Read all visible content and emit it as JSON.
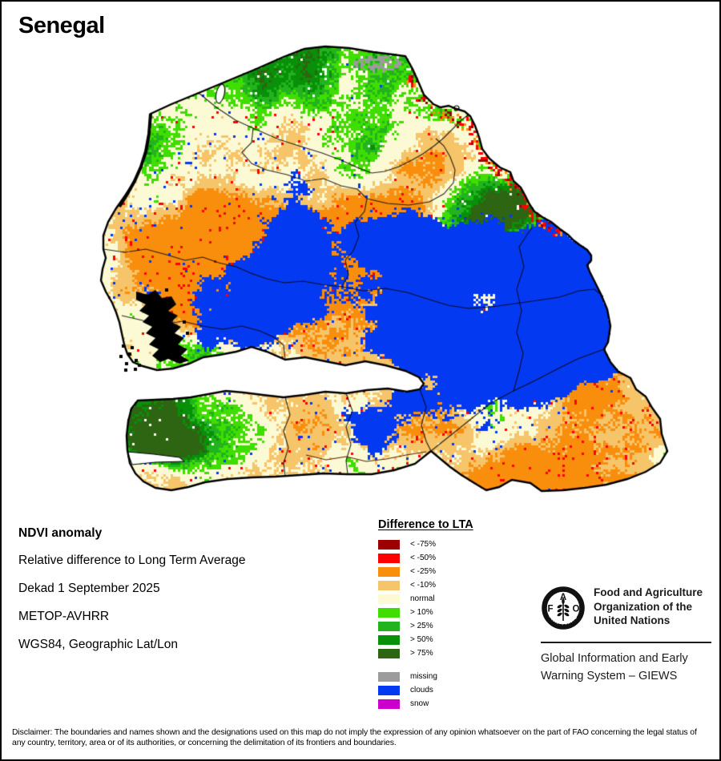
{
  "title": "Senegal",
  "info_block": {
    "heading": "NDVI anomaly",
    "lines": [
      "Relative difference to Long Term Average",
      "Dekad 1 September 2025",
      "METOP-AVHRR",
      "WGS84, Geographic Lat/Lon"
    ]
  },
  "legend": {
    "title": "Difference to LTA",
    "classes": [
      {
        "label": "< -75%",
        "color": "#9D0000"
      },
      {
        "label": "< -50%",
        "color": "#FF0000"
      },
      {
        "label": "< -25%",
        "color": "#F98E0D"
      },
      {
        "label": "< -10%",
        "color": "#F6C469"
      },
      {
        "label": "normal",
        "color": "#FCFAD5"
      },
      {
        "label": "> 10%",
        "color": "#3FDE00"
      },
      {
        "label": "> 25%",
        "color": "#22B31E"
      },
      {
        "label": "> 50%",
        "color": "#089008"
      },
      {
        "label": "> 75%",
        "color": "#2E6512"
      }
    ],
    "extra_classes": [
      {
        "label": "missing",
        "color": "#9C9C9C"
      },
      {
        "label": "clouds",
        "color": "#0439F2"
      },
      {
        "label": "snow",
        "color": "#CC00CC"
      }
    ]
  },
  "map": {
    "country": "Senegal",
    "background_color": "#FFFFFF",
    "boundary_color": "#000000",
    "urban_mask_color": "#000000"
  },
  "footer": {
    "org_lines": [
      "Food and Agriculture",
      "Organization of the",
      "United Nations"
    ],
    "giews_lines": [
      "Global Information and Early",
      "Warning System – GIEWS"
    ],
    "logo": {
      "letters": [
        "F",
        "A",
        "O"
      ],
      "motto": "FIAT PANIS"
    }
  },
  "disclaimer": "Disclaimer: The boundaries and names shown and the designations used on this map do not imply the expression of any opinion whatsoever on the part of FAO concerning the legal status of any country, territory, area or of its authorities, or concerning the delimitation of its frontiers and boundaries."
}
